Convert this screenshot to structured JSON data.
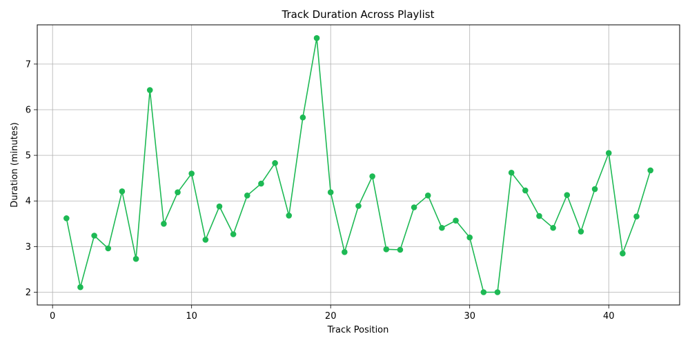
{
  "chart_data": {
    "type": "line",
    "title": "Track Duration Across Playlist",
    "xlabel": "Track Position",
    "ylabel": "Duration (minutes)",
    "xlim": [
      -1.1,
      45.1
    ],
    "ylim": [
      1.72,
      7.86
    ],
    "xticks": [
      0,
      10,
      20,
      30,
      40
    ],
    "yticks": [
      2,
      3,
      4,
      5,
      6,
      7
    ],
    "grid": true,
    "legend": "none",
    "color": "#1DB954",
    "series": [
      {
        "x": [
          1,
          2,
          3,
          4,
          5,
          6,
          7,
          8,
          9,
          10,
          11,
          12,
          13,
          14,
          15,
          16,
          17,
          18,
          19,
          20,
          21,
          22,
          23,
          24,
          25,
          26,
          27,
          28,
          29,
          30,
          31,
          32,
          33,
          34,
          35,
          36,
          37,
          38,
          39,
          40,
          41,
          42,
          43
        ],
        "values": [
          3.62,
          2.11,
          3.24,
          2.96,
          4.21,
          2.73,
          6.43,
          3.5,
          4.19,
          4.6,
          3.15,
          3.88,
          3.27,
          4.12,
          4.38,
          4.83,
          3.68,
          5.83,
          7.57,
          4.19,
          2.88,
          3.89,
          4.54,
          2.94,
          2.93,
          3.86,
          4.12,
          3.41,
          3.57,
          3.2,
          2.0,
          2.0,
          4.62,
          4.23,
          3.67,
          3.41,
          4.13,
          3.33,
          4.26,
          5.05,
          2.85,
          3.66,
          4.67
        ]
      }
    ]
  }
}
